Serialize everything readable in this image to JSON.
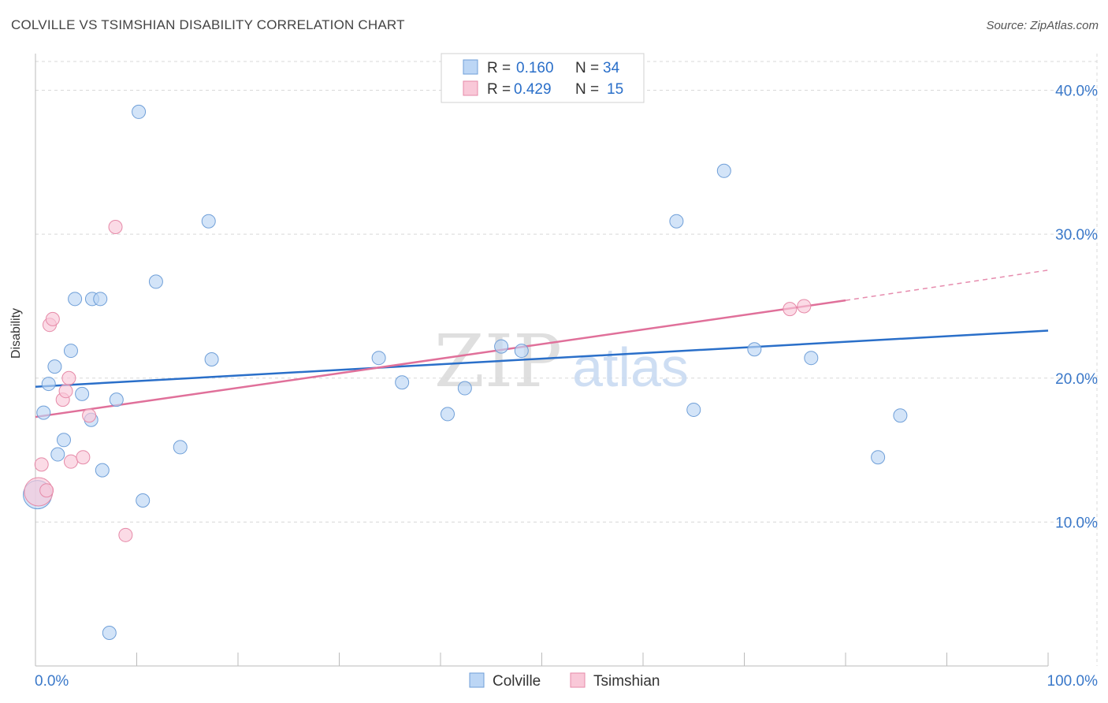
{
  "title": "COLVILLE VS TSIMSHIAN DISABILITY CORRELATION CHART",
  "source": "Source: ZipAtlas.com",
  "watermark": {
    "zip": "ZIP",
    "atlas": "atlas"
  },
  "colors": {
    "colville_fill": "#bcd6f5",
    "colville_stroke": "#6f9fd8",
    "colville_line": "#2a6fc9",
    "tsimshian_fill": "#f9c8d8",
    "tsimshian_stroke": "#e68aa8",
    "tsimshian_line": "#e0709a",
    "tick_label": "#3a78c9",
    "grid": "#d8d8d8"
  },
  "legend": {
    "rows": [
      {
        "r_label": "R =",
        "r_value": "0.160",
        "n_label": "N =",
        "n_value": "34"
      },
      {
        "r_label": "R =",
        "r_value": "0.429",
        "n_label": "N =",
        "n_value": "15"
      }
    ]
  },
  "chart_data": {
    "type": "scatter",
    "title": "COLVILLE VS TSIMSHIAN DISABILITY CORRELATION CHART",
    "xlabel": "",
    "ylabel": "Disability",
    "xlim": [
      0,
      100
    ],
    "ylim": [
      0,
      42
    ],
    "x_tick_labels": [
      "0.0%",
      "100.0%"
    ],
    "y_ticks": [
      10,
      20,
      30,
      40
    ],
    "y_tick_labels": [
      "10.0%",
      "20.0%",
      "30.0%",
      "40.0%"
    ],
    "grid": true,
    "legend_position": "bottom-center",
    "series": [
      {
        "name": "Colville",
        "r": 0.16,
        "n": 34,
        "trend": {
          "x0": 0,
          "y0": 19.4,
          "x1": 100,
          "y1": 23.3
        },
        "points": [
          {
            "x": 0.2,
            "y": 11.9,
            "big": true
          },
          {
            "x": 0.8,
            "y": 17.6
          },
          {
            "x": 1.3,
            "y": 19.6
          },
          {
            "x": 1.9,
            "y": 20.8
          },
          {
            "x": 2.2,
            "y": 14.7
          },
          {
            "x": 2.8,
            "y": 15.7
          },
          {
            "x": 3.5,
            "y": 21.9
          },
          {
            "x": 3.9,
            "y": 25.5
          },
          {
            "x": 4.6,
            "y": 18.9
          },
          {
            "x": 5.5,
            "y": 17.1
          },
          {
            "x": 5.6,
            "y": 25.5
          },
          {
            "x": 6.4,
            "y": 25.5
          },
          {
            "x": 6.6,
            "y": 13.6
          },
          {
            "x": 7.3,
            "y": 2.3
          },
          {
            "x": 8.0,
            "y": 18.5
          },
          {
            "x": 10.2,
            "y": 38.5
          },
          {
            "x": 10.6,
            "y": 11.5
          },
          {
            "x": 11.9,
            "y": 26.7
          },
          {
            "x": 14.3,
            "y": 15.2
          },
          {
            "x": 17.1,
            "y": 30.9
          },
          {
            "x": 17.4,
            "y": 21.3
          },
          {
            "x": 33.9,
            "y": 21.4
          },
          {
            "x": 36.2,
            "y": 19.7
          },
          {
            "x": 40.7,
            "y": 17.5
          },
          {
            "x": 42.4,
            "y": 19.3
          },
          {
            "x": 46.0,
            "y": 22.2
          },
          {
            "x": 48.0,
            "y": 21.9
          },
          {
            "x": 63.3,
            "y": 30.9
          },
          {
            "x": 65.0,
            "y": 17.8
          },
          {
            "x": 68.0,
            "y": 34.4
          },
          {
            "x": 71.0,
            "y": 22.0
          },
          {
            "x": 76.6,
            "y": 21.4
          },
          {
            "x": 83.2,
            "y": 14.5
          },
          {
            "x": 85.4,
            "y": 17.4
          }
        ]
      },
      {
        "name": "Tsimshian",
        "r": 0.429,
        "n": 15,
        "trend": {
          "x0": 0,
          "y0": 17.3,
          "x1": 80.0,
          "y1": 25.4,
          "dash_to_x": 100,
          "dash_to_y": 27.5
        },
        "points": [
          {
            "x": 0.3,
            "y": 12.1,
            "big": true
          },
          {
            "x": 0.6,
            "y": 14.0
          },
          {
            "x": 1.1,
            "y": 12.2
          },
          {
            "x": 1.4,
            "y": 23.7
          },
          {
            "x": 1.7,
            "y": 24.1
          },
          {
            "x": 2.7,
            "y": 18.5
          },
          {
            "x": 3.0,
            "y": 19.1
          },
          {
            "x": 3.3,
            "y": 20.0
          },
          {
            "x": 3.5,
            "y": 14.2
          },
          {
            "x": 4.7,
            "y": 14.5
          },
          {
            "x": 5.3,
            "y": 17.4
          },
          {
            "x": 7.9,
            "y": 30.5
          },
          {
            "x": 8.9,
            "y": 9.1
          },
          {
            "x": 74.5,
            "y": 24.8
          },
          {
            "x": 75.9,
            "y": 25.0
          }
        ]
      }
    ]
  }
}
